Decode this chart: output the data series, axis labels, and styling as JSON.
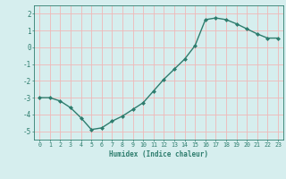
{
  "x": [
    0,
    1,
    2,
    3,
    4,
    5,
    6,
    7,
    8,
    9,
    10,
    11,
    12,
    13,
    14,
    15,
    16,
    17,
    18,
    19,
    20,
    21,
    22,
    23
  ],
  "y": [
    -3.0,
    -3.0,
    -3.2,
    -3.6,
    -4.2,
    -4.9,
    -4.8,
    -4.4,
    -4.1,
    -3.7,
    -3.3,
    -2.6,
    -1.9,
    -1.3,
    -0.7,
    0.1,
    1.65,
    1.75,
    1.65,
    1.4,
    1.1,
    0.8,
    0.55,
    0.55
  ],
  "line_color": "#2e7d6e",
  "marker": "D",
  "marker_size": 2.0,
  "bg_color": "#d6eeee",
  "grid_color": "#f0b8b8",
  "xlabel": "Humidex (Indice chaleur)",
  "ylim": [
    -5.5,
    2.5
  ],
  "xlim": [
    -0.5,
    23.5
  ],
  "yticks": [
    -5,
    -4,
    -3,
    -2,
    -1,
    0,
    1,
    2
  ],
  "font_color": "#2e7d6e",
  "linewidth": 1.0,
  "fig_width": 3.2,
  "fig_height": 2.0,
  "dpi": 100
}
